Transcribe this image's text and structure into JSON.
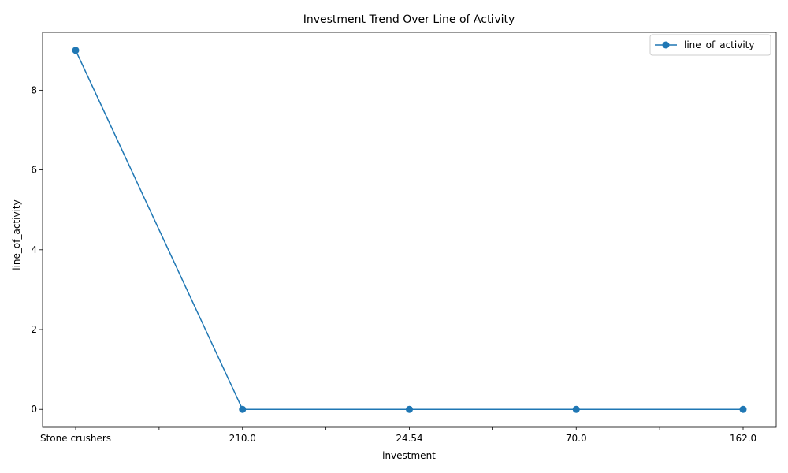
{
  "chart_data": {
    "type": "line",
    "title": "Investment Trend Over Line of Activity",
    "xlabel": "investment",
    "ylabel": "line_of_activity",
    "categories": [
      "Stone crushers",
      "210.0",
      "24.54",
      "70.0",
      "162.0"
    ],
    "series": [
      {
        "name": "line_of_activity",
        "values": [
          9,
          0,
          0,
          0,
          0
        ],
        "color": "#1f77b4",
        "marker": "circle"
      }
    ],
    "ylim": [
      -0.45,
      9.45
    ],
    "yticks": [
      0,
      2,
      4,
      6,
      8
    ],
    "grid": false,
    "legend_position": "top-right"
  }
}
